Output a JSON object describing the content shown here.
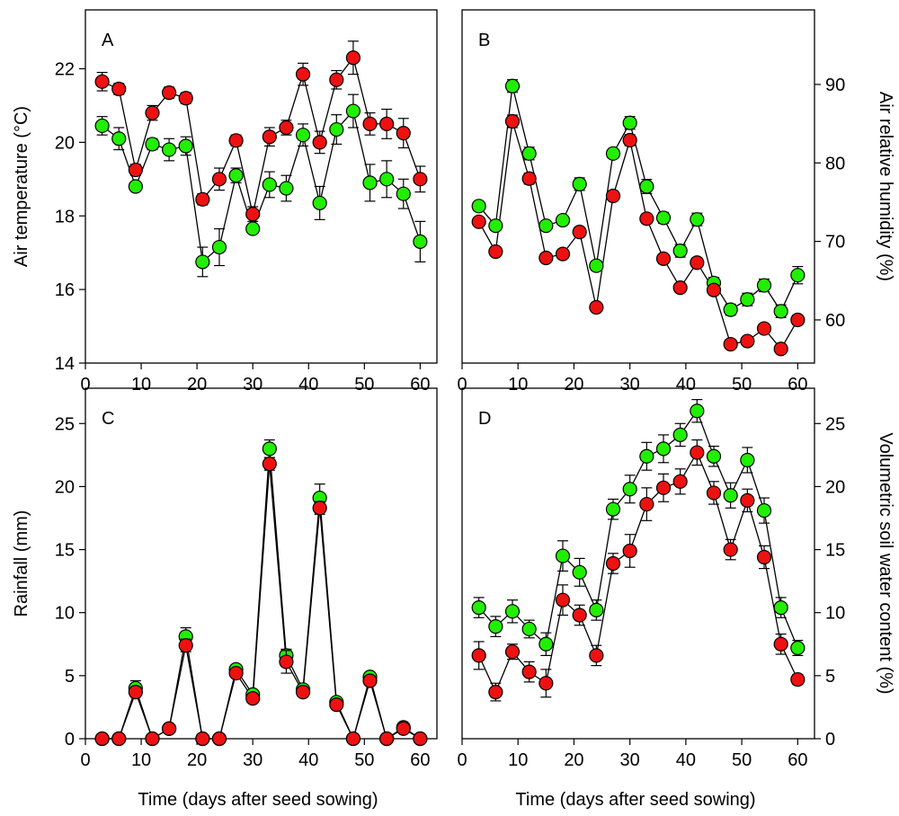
{
  "figure": {
    "bottom_xlabel_left": "Time (days after seed sowing)",
    "bottom_xlabel_right": "Time (days after seed sowing)"
  },
  "colors": {
    "green": "#22ee00",
    "red": "#ee1111",
    "axis": "#000000"
  },
  "chart_data": [
    {
      "id": "A",
      "panel_label": "A",
      "type": "line",
      "ylabel": "Air temperature (°C)",
      "ylabel_side": "left",
      "xlim": [
        0,
        63
      ],
      "xticks": [
        0,
        10,
        20,
        30,
        40,
        50,
        60
      ],
      "ylim": [
        14,
        23.6
      ],
      "yticks": [
        14,
        16,
        18,
        20,
        22
      ],
      "x": [
        3,
        6,
        9,
        12,
        15,
        18,
        21,
        24,
        27,
        30,
        33,
        36,
        39,
        42,
        45,
        48,
        51,
        54,
        57,
        60
      ],
      "series": [
        {
          "name": "green",
          "color": "#22ee00",
          "values": [
            20.45,
            20.1,
            18.8,
            19.95,
            19.8,
            19.9,
            16.75,
            17.15,
            19.1,
            17.65,
            18.85,
            18.75,
            20.2,
            18.35,
            20.35,
            20.85,
            18.9,
            19.0,
            18.6,
            17.3
          ],
          "errors": [
            0.25,
            0.3,
            0.1,
            0.15,
            0.3,
            0.25,
            0.4,
            0.5,
            0.2,
            0.1,
            0.35,
            0.35,
            0.3,
            0.45,
            0.4,
            0.45,
            0.5,
            0.5,
            0.4,
            0.55
          ]
        },
        {
          "name": "red",
          "color": "#ee1111",
          "values": [
            21.65,
            21.45,
            19.25,
            20.8,
            21.35,
            21.2,
            18.45,
            19.0,
            20.05,
            18.05,
            20.15,
            20.4,
            21.85,
            20.0,
            21.7,
            22.3,
            20.5,
            20.5,
            20.25,
            19.0
          ],
          "errors": [
            0.25,
            0.15,
            0.15,
            0.2,
            0.15,
            0.15,
            0.15,
            0.3,
            0.15,
            0.2,
            0.25,
            0.2,
            0.3,
            0.3,
            0.25,
            0.45,
            0.3,
            0.4,
            0.4,
            0.35
          ]
        }
      ]
    },
    {
      "id": "B",
      "panel_label": "B",
      "type": "line",
      "ylabel": "Air relative humidity (%)",
      "ylabel_side": "right",
      "xlim": [
        0,
        63
      ],
      "xticks": [
        0,
        10,
        20,
        30,
        40,
        50,
        60
      ],
      "ylim": [
        54.5,
        99.5
      ],
      "yticks": [
        60,
        70,
        80,
        90
      ],
      "x": [
        3,
        6,
        9,
        12,
        15,
        18,
        21,
        24,
        27,
        30,
        33,
        36,
        39,
        42,
        45,
        48,
        51,
        54,
        57,
        60
      ],
      "series": [
        {
          "name": "green",
          "color": "#22ee00",
          "values": [
            74.5,
            72.0,
            89.8,
            81.2,
            72.0,
            72.7,
            77.3,
            66.9,
            81.2,
            85.1,
            77.0,
            73.0,
            68.8,
            72.8,
            64.7,
            61.3,
            62.6,
            64.4,
            61.1,
            65.7
          ],
          "errors": [
            0.6,
            0.6,
            0.8,
            0.8,
            0.5,
            0.5,
            0.8,
            0.6,
            0.6,
            0.8,
            0.9,
            0.7,
            0.8,
            0.8,
            0.7,
            0.7,
            0.8,
            0.8,
            0.8,
            1.1
          ]
        },
        {
          "name": "red",
          "color": "#ee1111",
          "values": [
            72.5,
            68.7,
            85.3,
            78.0,
            67.9,
            68.4,
            71.2,
            61.6,
            75.8,
            82.9,
            72.9,
            67.8,
            64.1,
            67.3,
            63.8,
            56.9,
            57.3,
            58.9,
            56.3,
            60.0
          ],
          "errors": [
            0.5,
            0.5,
            0.8,
            0.7,
            0.5,
            0.5,
            0.6,
            0.5,
            0.6,
            0.7,
            0.6,
            0.5,
            0.5,
            0.6,
            0.5,
            0.5,
            0.5,
            0.5,
            0.5,
            0.6
          ]
        }
      ]
    },
    {
      "id": "C",
      "panel_label": "C",
      "type": "line",
      "ylabel": "Rainfall (mm)",
      "ylabel_side": "left",
      "xlim": [
        0,
        63
      ],
      "xticks": [
        0,
        10,
        20,
        30,
        40,
        50,
        60
      ],
      "ylim": [
        0,
        27.8
      ],
      "yticks": [
        0,
        5,
        10,
        15,
        20,
        25
      ],
      "x": [
        3,
        6,
        9,
        12,
        15,
        18,
        21,
        24,
        27,
        30,
        33,
        36,
        39,
        42,
        45,
        48,
        51,
        54,
        57,
        60
      ],
      "series": [
        {
          "name": "green",
          "color": "#22ee00",
          "values": [
            0.0,
            0.0,
            4.0,
            0.0,
            0.8,
            8.1,
            0.0,
            0.0,
            5.5,
            3.5,
            23.0,
            6.6,
            3.9,
            19.1,
            2.9,
            0.0,
            4.9,
            0.0,
            0.9,
            0.0
          ],
          "errors": [
            0.0,
            0.0,
            0.6,
            0.0,
            0.2,
            0.7,
            0.0,
            0.0,
            0.3,
            0.3,
            0.7,
            0.5,
            0.3,
            1.1,
            0.3,
            0.0,
            0.3,
            0.0,
            0.2,
            0.0
          ]
        },
        {
          "name": "red",
          "color": "#ee1111",
          "values": [
            0.0,
            0.0,
            3.7,
            0.0,
            0.8,
            7.4,
            0.0,
            0.0,
            5.2,
            3.2,
            21.8,
            6.1,
            3.7,
            18.3,
            2.7,
            0.0,
            4.6,
            0.0,
            0.8,
            0.0
          ],
          "errors": [
            0.0,
            0.0,
            0.4,
            0.0,
            0.2,
            0.5,
            0.0,
            0.0,
            0.3,
            0.3,
            0.5,
            0.9,
            0.3,
            0.5,
            0.3,
            0.0,
            0.3,
            0.0,
            0.2,
            0.0
          ]
        }
      ]
    },
    {
      "id": "D",
      "panel_label": "D",
      "type": "line",
      "ylabel": "Volumetric soil water content (%)",
      "ylabel_side": "right",
      "xlim": [
        0,
        63
      ],
      "xticks": [
        0,
        10,
        20,
        30,
        40,
        50,
        60
      ],
      "ylim": [
        0,
        27.8
      ],
      "yticks": [
        0,
        5,
        10,
        15,
        20,
        25
      ],
      "x": [
        3,
        6,
        9,
        12,
        15,
        18,
        21,
        24,
        27,
        30,
        33,
        36,
        39,
        42,
        45,
        48,
        51,
        54,
        57,
        60
      ],
      "series": [
        {
          "name": "green",
          "color": "#22ee00",
          "values": [
            10.4,
            8.9,
            10.1,
            8.7,
            7.5,
            14.5,
            13.2,
            10.2,
            18.2,
            19.8,
            22.4,
            23.0,
            24.1,
            26.0,
            22.4,
            19.3,
            22.1,
            18.1,
            10.4,
            7.2
          ],
          "errors": [
            0.8,
            0.8,
            0.9,
            0.7,
            0.9,
            1.2,
            1.1,
            0.8,
            0.8,
            1.1,
            1.1,
            1.1,
            0.9,
            0.9,
            0.8,
            1.0,
            1.0,
            1.0,
            0.8,
            0.6
          ]
        },
        {
          "name": "red",
          "color": "#ee1111",
          "values": [
            6.6,
            3.7,
            6.9,
            5.3,
            4.4,
            11.0,
            9.8,
            6.6,
            13.9,
            14.9,
            18.6,
            19.9,
            20.4,
            22.7,
            19.5,
            15.0,
            18.9,
            14.4,
            7.5,
            4.7
          ],
          "errors": [
            1.1,
            0.7,
            0.6,
            0.8,
            1.1,
            1.2,
            0.8,
            0.8,
            0.8,
            1.3,
            1.3,
            1.1,
            1.0,
            1.0,
            0.9,
            0.8,
            0.9,
            0.9,
            0.8,
            0.4
          ]
        }
      ]
    }
  ]
}
